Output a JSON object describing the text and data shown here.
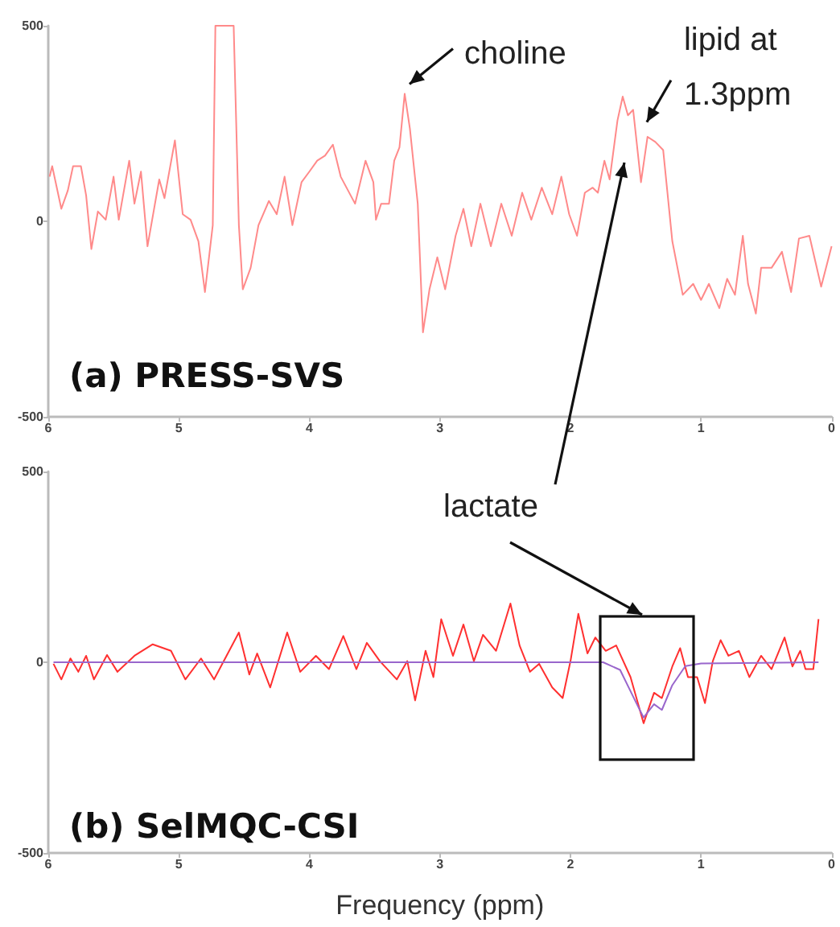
{
  "chart_data": [
    {
      "type": "line",
      "title": "(a) PRESS-SVS",
      "xlim": [
        6,
        0
      ],
      "xticks": [
        6,
        5,
        4,
        3,
        2,
        1,
        0
      ],
      "ylim": [
        -500,
        500
      ],
      "yticks": [
        -500,
        0,
        500
      ],
      "marker": "none",
      "annotations": [
        {
          "text": "choline",
          "x": 3.27,
          "y": 326
        },
        {
          "text": "lipid at 1.3ppm",
          "x": 1.44,
          "y": 237
        }
      ],
      "series": [
        {
          "color": "#ff8a8a",
          "x": [
            5.99,
            5.97,
            5.9,
            5.85,
            5.81,
            5.75,
            5.71,
            5.67,
            5.62,
            5.56,
            5.5,
            5.46,
            5.38,
            5.34,
            5.29,
            5.24,
            5.15,
            5.11,
            5.03,
            4.97,
            4.91,
            4.85,
            4.8,
            4.74,
            4.72,
            4.58,
            4.54,
            4.51,
            4.45,
            4.39,
            4.31,
            4.25,
            4.19,
            4.13,
            4.06,
            4.0,
            3.94,
            3.88,
            3.82,
            3.76,
            3.65,
            3.57,
            3.51,
            3.49,
            3.45,
            3.39,
            3.35,
            3.31,
            3.27,
            3.23,
            3.17,
            3.13,
            3.08,
            3.02,
            2.96,
            2.88,
            2.82,
            2.76,
            2.69,
            2.61,
            2.53,
            2.45,
            2.37,
            2.3,
            2.22,
            2.14,
            2.07,
            2.01,
            1.95,
            1.89,
            1.83,
            1.79,
            1.74,
            1.7,
            1.64,
            1.6,
            1.56,
            1.52,
            1.46,
            1.41,
            1.35,
            1.29,
            1.22,
            1.14,
            1.06,
            1.0,
            0.94,
            0.86,
            0.8,
            0.74,
            0.68,
            0.64,
            0.58,
            0.54,
            0.46,
            0.38,
            0.31,
            0.25,
            0.17,
            0.08,
            0.0
          ],
          "values": [
            114,
            141,
            32,
            79,
            141,
            141,
            66,
            -71,
            25,
            4,
            114,
            4,
            155,
            45,
            127,
            -64,
            107,
            59,
            207,
            18,
            4,
            -51,
            -181,
            -10,
            500,
            500,
            -10,
            -174,
            -119,
            -10,
            52,
            18,
            114,
            -10,
            100,
            127,
            155,
            168,
            196,
            114,
            45,
            155,
            100,
            4,
            45,
            45,
            155,
            189,
            326,
            237,
            45,
            -284,
            -174,
            -92,
            -174,
            -37,
            32,
            -64,
            45,
            -64,
            45,
            -37,
            73,
            4,
            86,
            18,
            114,
            18,
            -37,
            73,
            86,
            73,
            155,
            107,
            258,
            319,
            271,
            285,
            100,
            216,
            203,
            182,
            -51,
            -188,
            -160,
            -201,
            -160,
            -222,
            -147,
            -188,
            -37,
            -160,
            -236,
            -119,
            -119,
            -78,
            -181,
            -44,
            -37,
            -167,
            -64
          ]
        }
      ]
    },
    {
      "type": "line",
      "title": "(b) SelMQC-CSI",
      "xlabel": "Frequency (ppm)",
      "xlim": [
        6,
        0
      ],
      "xticks": [
        6,
        5,
        4,
        3,
        2,
        1,
        0
      ],
      "ylim": [
        -500,
        500
      ],
      "yticks": [
        -500,
        0,
        500
      ],
      "marker": "none",
      "annotations": [
        "lactate"
      ],
      "series": [
        {
          "color": "#ff3030",
          "x": [
            5.96,
            5.9,
            5.83,
            5.77,
            5.71,
            5.65,
            5.55,
            5.47,
            5.34,
            5.2,
            5.06,
            4.95,
            4.83,
            4.73,
            4.54,
            4.46,
            4.4,
            4.3,
            4.17,
            4.07,
            3.95,
            3.85,
            3.74,
            3.64,
            3.56,
            3.46,
            3.33,
            3.25,
            3.19,
            3.11,
            3.05,
            2.99,
            2.9,
            2.82,
            2.74,
            2.67,
            2.57,
            2.46,
            2.39,
            2.31,
            2.24,
            2.14,
            2.06,
            2.0,
            1.94,
            1.87,
            1.81,
            1.73,
            1.65,
            1.54,
            1.44,
            1.36,
            1.3,
            1.22,
            1.16,
            1.1,
            1.03,
            0.97,
            0.91,
            0.85,
            0.79,
            0.71,
            0.63,
            0.54,
            0.46,
            0.36,
            0.3,
            0.24,
            0.2,
            0.14,
            0.1
          ],
          "values": [
            -4,
            -45,
            10,
            -25,
            17,
            -45,
            19,
            -25,
            17,
            47,
            30,
            -45,
            10,
            -45,
            78,
            -32,
            23,
            -66,
            78,
            -25,
            17,
            -18,
            69,
            -18,
            51,
            3,
            -45,
            3,
            -100,
            30,
            -39,
            113,
            17,
            99,
            3,
            72,
            30,
            154,
            44,
            -25,
            -4,
            -66,
            -94,
            3,
            127,
            23,
            65,
            30,
            44,
            -39,
            -160,
            -80,
            -94,
            -11,
            37,
            -39,
            -39,
            -107,
            3,
            58,
            17,
            30,
            -39,
            17,
            -18,
            65,
            -11,
            30,
            -18,
            -18,
            113
          ]
        },
        {
          "color": "#9966cc",
          "x": [
            5.96,
            2.0,
            1.75,
            1.62,
            1.52,
            1.44,
            1.36,
            1.3,
            1.22,
            1.12,
            1.0,
            0.1
          ],
          "values": [
            0,
            0,
            0,
            -20,
            -90,
            -145,
            -110,
            -125,
            -60,
            -10,
            -3,
            0
          ]
        }
      ]
    }
  ]
}
